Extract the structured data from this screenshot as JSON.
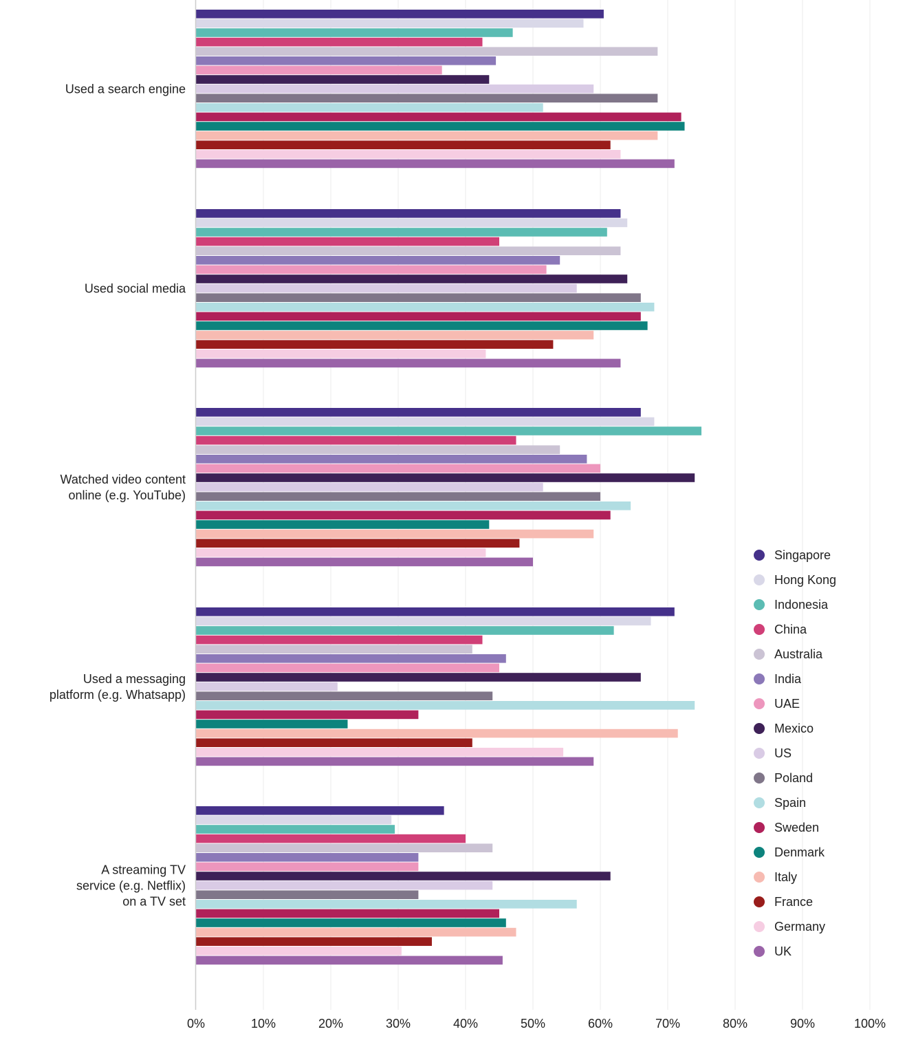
{
  "chart_data": {
    "type": "bar",
    "orientation": "horizontal",
    "title": "",
    "xlabel": "",
    "ylabel": "",
    "xlim": [
      0,
      100
    ],
    "x_ticks": [
      0,
      10,
      20,
      30,
      40,
      50,
      60,
      70,
      80,
      90,
      100
    ],
    "x_tick_labels": [
      "0%",
      "10%",
      "20%",
      "30%",
      "40%",
      "50%",
      "60%",
      "70%",
      "80%",
      "90%",
      "100%"
    ],
    "grid": true,
    "legend_position": "right",
    "categories": [
      [
        "Used a search engine"
      ],
      [
        "Used social media"
      ],
      [
        "Watched video content",
        "online (e.g. YouTube)"
      ],
      [
        "Used a messaging",
        "platform (e.g. Whatsapp)"
      ],
      [
        "A streaming TV",
        "service (e.g. Netflix)",
        "on a TV set"
      ]
    ],
    "series": [
      {
        "name": "Singapore",
        "color": "#45318a",
        "values": [
          60.5,
          63,
          66,
          71,
          36.8
        ]
      },
      {
        "name": "Hong Kong",
        "color": "#d9d8e8",
        "values": [
          57.5,
          64,
          68,
          67.5,
          29
        ]
      },
      {
        "name": "Indonesia",
        "color": "#5bbcb3",
        "values": [
          47,
          61,
          75,
          62,
          29.5
        ]
      },
      {
        "name": "China",
        "color": "#d03f77",
        "values": [
          42.5,
          45,
          47.5,
          42.5,
          40
        ]
      },
      {
        "name": "Australia",
        "color": "#cbc3d4",
        "values": [
          68.5,
          63,
          54,
          41,
          44
        ]
      },
      {
        "name": "India",
        "color": "#8b78b8",
        "values": [
          44.5,
          54,
          58,
          46,
          33
        ]
      },
      {
        "name": "UAE",
        "color": "#ed96bd",
        "values": [
          36.5,
          52,
          60,
          45,
          33
        ]
      },
      {
        "name": "Mexico",
        "color": "#3e2157",
        "values": [
          43.5,
          64,
          74,
          66,
          61.5
        ]
      },
      {
        "name": "US",
        "color": "#d9cbe5",
        "values": [
          59,
          56.5,
          51.5,
          21,
          44
        ]
      },
      {
        "name": "Poland",
        "color": "#807689",
        "values": [
          68.5,
          66,
          60,
          44,
          33
        ]
      },
      {
        "name": "Spain",
        "color": "#b1dde2",
        "values": [
          51.5,
          68,
          64.5,
          74,
          56.5
        ]
      },
      {
        "name": "Sweden",
        "color": "#b0215a",
        "values": [
          72,
          66,
          61.5,
          33,
          45
        ]
      },
      {
        "name": "Denmark",
        "color": "#0d837d",
        "values": [
          72.5,
          67,
          43.5,
          22.5,
          46
        ]
      },
      {
        "name": "Italy",
        "color": "#f7bbb2",
        "values": [
          68.5,
          59,
          59,
          71.5,
          47.5
        ]
      },
      {
        "name": "France",
        "color": "#991d1b",
        "values": [
          61.5,
          53,
          48,
          41,
          35
        ]
      },
      {
        "name": "Germany",
        "color": "#f6cde2",
        "values": [
          63,
          43,
          43,
          54.5,
          30.5
        ]
      },
      {
        "name": "UK",
        "color": "#9a63a8",
        "values": [
          71,
          63,
          50,
          59,
          45.5
        ]
      }
    ]
  }
}
